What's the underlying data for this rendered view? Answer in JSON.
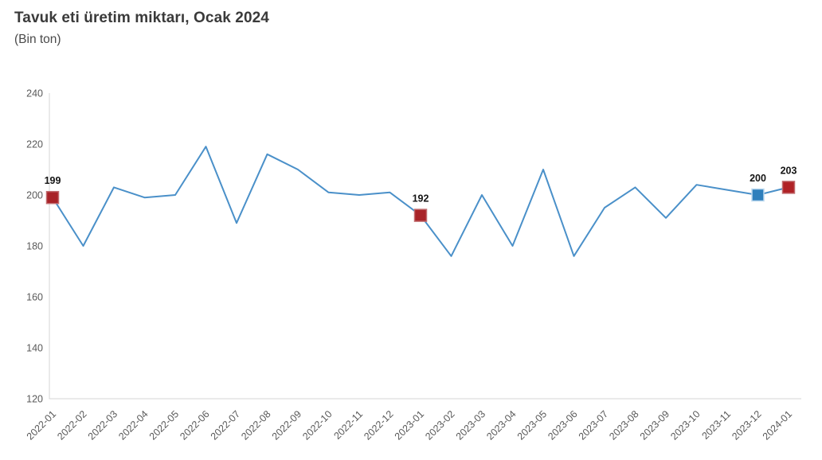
{
  "header": {
    "title": "Tavuk eti üretim miktarı, Ocak 2024",
    "subtitle": "(Bin ton)"
  },
  "chart_data": {
    "type": "line",
    "title": "Tavuk eti üretim miktarı, Ocak 2024",
    "subtitle": "(Bin ton)",
    "ylabel": "",
    "xlabel": "",
    "grid": false,
    "legend": "none",
    "ylim": [
      120,
      240
    ],
    "yticks": [
      240,
      220,
      200,
      180,
      160,
      140,
      120
    ],
    "categories": [
      "2022-01",
      "2022-02",
      "2022-03",
      "2022-04",
      "2022-05",
      "2022-06",
      "2022-07",
      "2022-08",
      "2022-09",
      "2022-10",
      "2022-11",
      "2022-12",
      "2023-01",
      "2023-02",
      "2023-03",
      "2023-04",
      "2023-05",
      "2023-06",
      "2023-07",
      "2023-08",
      "2023-09",
      "2023-10",
      "2023-11",
      "2023-12",
      "2024-01"
    ],
    "values": [
      199,
      180,
      203,
      199,
      200,
      219,
      189,
      216,
      210,
      201,
      200,
      201,
      192,
      176,
      200,
      180,
      210,
      176,
      195,
      203,
      191,
      204,
      202,
      200,
      203
    ],
    "line_color": "#4a90c9",
    "axis_color": "#d6d6d6",
    "marked_points": [
      {
        "index": 0,
        "label": "199",
        "fill": "#a82328",
        "border": "#c06a6d"
      },
      {
        "index": 12,
        "label": "192",
        "fill": "#a82328",
        "border": "#c06a6d"
      },
      {
        "index": 23,
        "label": "200",
        "fill": "#2e7fbc",
        "border": "#bdd9ef"
      },
      {
        "index": 24,
        "label": "203",
        "fill": "#b02226",
        "border": "#c06a6d"
      }
    ]
  }
}
